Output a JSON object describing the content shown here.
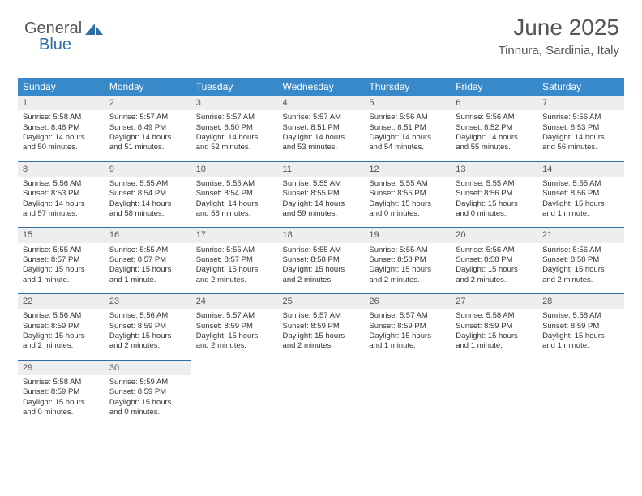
{
  "logo": {
    "general": "General",
    "blue": "Blue"
  },
  "header": {
    "title": "June 2025",
    "location": "Tinnura, Sardinia, Italy"
  },
  "colors": {
    "header_bg": "#3789c9",
    "header_text": "#ffffff",
    "daynum_bg": "#eeeeee",
    "rule": "#2f6fa8",
    "body_text": "#333333",
    "title_text": "#555555"
  },
  "weekdays": [
    "Sunday",
    "Monday",
    "Tuesday",
    "Wednesday",
    "Thursday",
    "Friday",
    "Saturday"
  ],
  "weeks": [
    [
      {
        "num": "1",
        "sr": "5:58 AM",
        "ss": "8:48 PM",
        "dl": "14 hours and 50 minutes."
      },
      {
        "num": "2",
        "sr": "5:57 AM",
        "ss": "8:49 PM",
        "dl": "14 hours and 51 minutes."
      },
      {
        "num": "3",
        "sr": "5:57 AM",
        "ss": "8:50 PM",
        "dl": "14 hours and 52 minutes."
      },
      {
        "num": "4",
        "sr": "5:57 AM",
        "ss": "8:51 PM",
        "dl": "14 hours and 53 minutes."
      },
      {
        "num": "5",
        "sr": "5:56 AM",
        "ss": "8:51 PM",
        "dl": "14 hours and 54 minutes."
      },
      {
        "num": "6",
        "sr": "5:56 AM",
        "ss": "8:52 PM",
        "dl": "14 hours and 55 minutes."
      },
      {
        "num": "7",
        "sr": "5:56 AM",
        "ss": "8:53 PM",
        "dl": "14 hours and 56 minutes."
      }
    ],
    [
      {
        "num": "8",
        "sr": "5:56 AM",
        "ss": "8:53 PM",
        "dl": "14 hours and 57 minutes."
      },
      {
        "num": "9",
        "sr": "5:55 AM",
        "ss": "8:54 PM",
        "dl": "14 hours and 58 minutes."
      },
      {
        "num": "10",
        "sr": "5:55 AM",
        "ss": "8:54 PM",
        "dl": "14 hours and 58 minutes."
      },
      {
        "num": "11",
        "sr": "5:55 AM",
        "ss": "8:55 PM",
        "dl": "14 hours and 59 minutes."
      },
      {
        "num": "12",
        "sr": "5:55 AM",
        "ss": "8:55 PM",
        "dl": "15 hours and 0 minutes."
      },
      {
        "num": "13",
        "sr": "5:55 AM",
        "ss": "8:56 PM",
        "dl": "15 hours and 0 minutes."
      },
      {
        "num": "14",
        "sr": "5:55 AM",
        "ss": "8:56 PM",
        "dl": "15 hours and 1 minute."
      }
    ],
    [
      {
        "num": "15",
        "sr": "5:55 AM",
        "ss": "8:57 PM",
        "dl": "15 hours and 1 minute."
      },
      {
        "num": "16",
        "sr": "5:55 AM",
        "ss": "8:57 PM",
        "dl": "15 hours and 1 minute."
      },
      {
        "num": "17",
        "sr": "5:55 AM",
        "ss": "8:57 PM",
        "dl": "15 hours and 2 minutes."
      },
      {
        "num": "18",
        "sr": "5:55 AM",
        "ss": "8:58 PM",
        "dl": "15 hours and 2 minutes."
      },
      {
        "num": "19",
        "sr": "5:55 AM",
        "ss": "8:58 PM",
        "dl": "15 hours and 2 minutes."
      },
      {
        "num": "20",
        "sr": "5:56 AM",
        "ss": "8:58 PM",
        "dl": "15 hours and 2 minutes."
      },
      {
        "num": "21",
        "sr": "5:56 AM",
        "ss": "8:58 PM",
        "dl": "15 hours and 2 minutes."
      }
    ],
    [
      {
        "num": "22",
        "sr": "5:56 AM",
        "ss": "8:59 PM",
        "dl": "15 hours and 2 minutes."
      },
      {
        "num": "23",
        "sr": "5:56 AM",
        "ss": "8:59 PM",
        "dl": "15 hours and 2 minutes."
      },
      {
        "num": "24",
        "sr": "5:57 AM",
        "ss": "8:59 PM",
        "dl": "15 hours and 2 minutes."
      },
      {
        "num": "25",
        "sr": "5:57 AM",
        "ss": "8:59 PM",
        "dl": "15 hours and 2 minutes."
      },
      {
        "num": "26",
        "sr": "5:57 AM",
        "ss": "8:59 PM",
        "dl": "15 hours and 1 minute."
      },
      {
        "num": "27",
        "sr": "5:58 AM",
        "ss": "8:59 PM",
        "dl": "15 hours and 1 minute."
      },
      {
        "num": "28",
        "sr": "5:58 AM",
        "ss": "8:59 PM",
        "dl": "15 hours and 1 minute."
      }
    ],
    [
      {
        "num": "29",
        "sr": "5:58 AM",
        "ss": "8:59 PM",
        "dl": "15 hours and 0 minutes."
      },
      {
        "num": "30",
        "sr": "5:59 AM",
        "ss": "8:59 PM",
        "dl": "15 hours and 0 minutes."
      },
      null,
      null,
      null,
      null,
      null
    ]
  ],
  "labels": {
    "sunrise": "Sunrise:",
    "sunset": "Sunset:",
    "daylight": "Daylight:"
  }
}
